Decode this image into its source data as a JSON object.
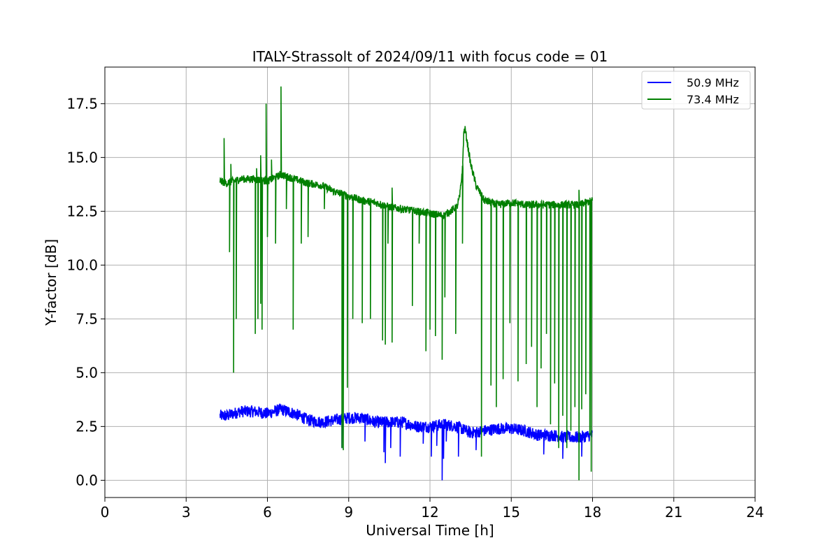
{
  "chart_data": {
    "type": "line",
    "title": "ITALY-Strassolt of 2024/09/11 with focus code = 01",
    "xlabel": "Universal Time [h]",
    "ylabel": "Y-factor [dB]",
    "xlim": [
      0,
      24
    ],
    "ylim": [
      -0.8,
      19.2
    ],
    "xticks": [
      0,
      3,
      6,
      9,
      12,
      15,
      18,
      21,
      24
    ],
    "xtick_labels": [
      "0",
      "3",
      "6",
      "9",
      "12",
      "15",
      "18",
      "21",
      "24"
    ],
    "yticks": [
      0,
      2.5,
      5,
      7.5,
      10,
      12.5,
      15,
      17.5
    ],
    "ytick_labels": [
      "0.0",
      "2.5",
      "5.0",
      "7.5",
      "10.0",
      "12.5",
      "15.0",
      "17.5"
    ],
    "grid": true,
    "legend_position": "top-right",
    "series": [
      {
        "name": "50.9 MHz",
        "color": "#0000ff",
        "x": [
          4.25,
          4.5,
          5.0,
          5.5,
          6.0,
          6.5,
          7.0,
          7.5,
          8.0,
          8.5,
          9.0,
          9.5,
          10.0,
          10.5,
          11.0,
          11.5,
          12.0,
          12.5,
          13.0,
          13.5,
          14.0,
          14.5,
          15.0,
          15.5,
          16.0,
          16.5,
          17.0,
          17.5,
          18.0
        ],
        "values": [
          3.0,
          3.0,
          3.2,
          3.2,
          3.1,
          3.3,
          3.1,
          2.8,
          2.7,
          2.8,
          2.9,
          2.9,
          2.7,
          2.7,
          2.7,
          2.5,
          2.5,
          2.6,
          2.5,
          2.2,
          2.3,
          2.4,
          2.4,
          2.3,
          2.1,
          2.1,
          2.0,
          2.0,
          2.1
        ],
        "dips": [
          [
            8.75,
            1.5
          ],
          [
            9.6,
            1.8
          ],
          [
            10.3,
            1.5
          ],
          [
            10.55,
            1.5
          ],
          [
            10.3,
            1.3
          ],
          [
            10.35,
            0.8
          ],
          [
            10.9,
            1.1
          ],
          [
            11.75,
            1.7
          ],
          [
            12.05,
            1.1
          ],
          [
            12.25,
            1.6
          ],
          [
            12.45,
            0.0
          ],
          [
            12.5,
            1.0
          ],
          [
            12.6,
            1.8
          ],
          [
            13.05,
            1.1
          ],
          [
            13.7,
            1.4
          ],
          [
            16.2,
            1.2
          ],
          [
            16.9,
            1.0
          ],
          [
            17.6,
            1.1
          ]
        ]
      },
      {
        "name": "73.4 MHz",
        "color": "#008000",
        "x": [
          4.25,
          4.5,
          5.0,
          5.5,
          6.0,
          6.5,
          7.0,
          7.5,
          8.0,
          8.5,
          9.0,
          9.5,
          10.0,
          10.5,
          11.0,
          11.5,
          12.0,
          12.5,
          13.0,
          13.1,
          13.2,
          13.25,
          13.3,
          13.4,
          13.5,
          13.7,
          14.0,
          14.5,
          15.0,
          15.5,
          16.0,
          16.5,
          17.0,
          17.5,
          18.0
        ],
        "values": [
          13.9,
          13.8,
          14.0,
          14.0,
          13.9,
          14.2,
          14.0,
          13.8,
          13.7,
          13.4,
          13.2,
          13.0,
          12.9,
          12.7,
          12.6,
          12.5,
          12.4,
          12.3,
          12.7,
          13.2,
          14.5,
          16.2,
          16.3,
          15.5,
          14.7,
          13.7,
          13.0,
          12.8,
          12.9,
          12.8,
          12.8,
          12.8,
          12.8,
          12.8,
          13.0
        ],
        "spikes": [
          [
            4.4,
            15.9
          ],
          [
            4.65,
            14.7
          ],
          [
            5.6,
            14.5
          ],
          [
            5.75,
            15.1
          ],
          [
            5.95,
            17.5
          ],
          [
            6.15,
            14.9
          ],
          [
            6.5,
            18.3
          ],
          [
            10.6,
            13.6
          ],
          [
            17.5,
            13.5
          ]
        ],
        "dips": [
          [
            4.6,
            10.6
          ],
          [
            4.75,
            5.0
          ],
          [
            4.85,
            7.5
          ],
          [
            5.55,
            6.8
          ],
          [
            5.65,
            7.5
          ],
          [
            5.75,
            8.2
          ],
          [
            5.8,
            7.0
          ],
          [
            6.0,
            11.3
          ],
          [
            6.3,
            11.0
          ],
          [
            6.7,
            12.6
          ],
          [
            6.95,
            7.0
          ],
          [
            7.25,
            11.0
          ],
          [
            7.5,
            11.3
          ],
          [
            8.1,
            12.6
          ],
          [
            8.75,
            1.5
          ],
          [
            8.8,
            1.4
          ],
          [
            8.95,
            4.3
          ],
          [
            9.15,
            7.5
          ],
          [
            9.5,
            7.3
          ],
          [
            9.8,
            7.5
          ],
          [
            10.25,
            6.5
          ],
          [
            10.35,
            6.3
          ],
          [
            10.45,
            11.0
          ],
          [
            10.6,
            6.4
          ],
          [
            11.35,
            8.1
          ],
          [
            11.6,
            11.0
          ],
          [
            11.85,
            6.0
          ],
          [
            12.0,
            7.0
          ],
          [
            12.2,
            6.7
          ],
          [
            12.45,
            5.6
          ],
          [
            12.55,
            8.5
          ],
          [
            12.95,
            6.8
          ],
          [
            13.2,
            11.0
          ],
          [
            13.9,
            1.1
          ],
          [
            14.25,
            4.4
          ],
          [
            14.45,
            3.4
          ],
          [
            14.7,
            4.7
          ],
          [
            14.95,
            7.3
          ],
          [
            15.25,
            4.6
          ],
          [
            15.55,
            5.4
          ],
          [
            15.75,
            6.2
          ],
          [
            15.95,
            3.4
          ],
          [
            16.1,
            5.2
          ],
          [
            16.3,
            6.8
          ],
          [
            16.45,
            2.6
          ],
          [
            16.6,
            4.5
          ],
          [
            16.75,
            1.5
          ],
          [
            16.9,
            3.0
          ],
          [
            17.05,
            1.5
          ],
          [
            17.2,
            2.3
          ],
          [
            17.35,
            3.4
          ],
          [
            17.5,
            0.0
          ],
          [
            17.6,
            3.3
          ],
          [
            17.75,
            4.0
          ],
          [
            17.9,
            2.1
          ],
          [
            17.95,
            0.4
          ]
        ]
      }
    ]
  }
}
